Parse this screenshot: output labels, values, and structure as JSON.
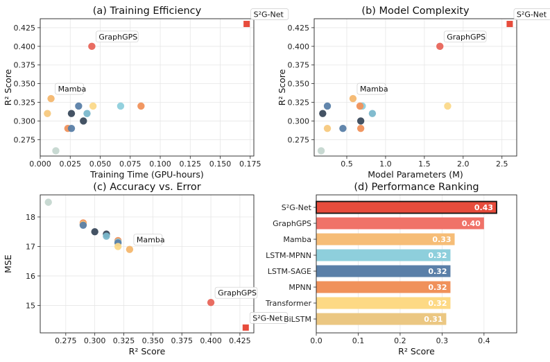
{
  "chart_data": [
    {
      "type": "scatter",
      "title": "(a) Training Efficiency",
      "xlabel": "Training Time (GPU-hours)",
      "ylabel": "R² Score",
      "xlim": [
        0.0,
        0.178
      ],
      "ylim": [
        0.253,
        0.437
      ],
      "xticks": [
        0.0,
        0.025,
        0.05,
        0.075,
        0.1,
        0.125,
        0.15,
        0.175
      ],
      "xtick_labels": [
        "0.000",
        "0.025",
        "0.050",
        "0.075",
        "0.100",
        "0.125",
        "0.150",
        "0.175"
      ],
      "yticks": [
        0.275,
        0.3,
        0.325,
        0.35,
        0.375,
        0.4,
        0.425
      ],
      "ytick_labels": [
        "0.275",
        "0.300",
        "0.325",
        "0.350",
        "0.375",
        "0.400",
        "0.425"
      ],
      "points": [
        {
          "x": 0.172,
          "y": 0.43,
          "color": "#e74c3c",
          "marker": "square",
          "label": "S²G-Net"
        },
        {
          "x": 0.043,
          "y": 0.4,
          "color": "#e8655a",
          "label": "GraphGPS"
        },
        {
          "x": 0.009,
          "y": 0.33,
          "color": "#f4b76e",
          "label": "Mamba"
        },
        {
          "x": 0.006,
          "y": 0.31,
          "color": "#f7c97e"
        },
        {
          "x": 0.026,
          "y": 0.31,
          "color": "#3a4a5c"
        },
        {
          "x": 0.032,
          "y": 0.32,
          "color": "#5a7fa8"
        },
        {
          "x": 0.044,
          "y": 0.32,
          "color": "#fbd98a"
        },
        {
          "x": 0.067,
          "y": 0.32,
          "color": "#8ecfdc"
        },
        {
          "x": 0.084,
          "y": 0.32,
          "color": "#f0915a"
        },
        {
          "x": 0.039,
          "y": 0.31,
          "color": "#7bb8cc"
        },
        {
          "x": 0.036,
          "y": 0.3,
          "color": "#3a4a5c"
        },
        {
          "x": 0.023,
          "y": 0.29,
          "color": "#f0915a"
        },
        {
          "x": 0.026,
          "y": 0.29,
          "color": "#5a7fa8"
        },
        {
          "x": 0.013,
          "y": 0.26,
          "color": "#c5d7d0"
        }
      ]
    },
    {
      "type": "scatter",
      "title": "(b) Model Complexity",
      "xlabel": "Model Parameters (M)",
      "ylabel": "R² Score",
      "xlim": [
        0.08,
        2.69
      ],
      "ylim": [
        0.253,
        0.437
      ],
      "xticks": [
        0.5,
        1.0,
        1.5,
        2.0,
        2.5
      ],
      "xtick_labels": [
        "0.5",
        "1.0",
        "1.5",
        "2.0",
        "2.5"
      ],
      "yticks": [
        0.275,
        0.3,
        0.325,
        0.35,
        0.375,
        0.4,
        0.425
      ],
      "ytick_labels": [
        "0.275",
        "0.300",
        "0.325",
        "0.350",
        "0.375",
        "0.400",
        "0.425"
      ],
      "points": [
        {
          "x": 2.6,
          "y": 0.43,
          "color": "#e74c3c",
          "marker": "square",
          "label": "S²G-Net"
        },
        {
          "x": 1.7,
          "y": 0.4,
          "color": "#e8655a",
          "label": "GraphGPS"
        },
        {
          "x": 0.58,
          "y": 0.33,
          "color": "#f4b76e",
          "label": "Mamba"
        },
        {
          "x": 0.19,
          "y": 0.31,
          "color": "#3a4a5c"
        },
        {
          "x": 0.25,
          "y": 0.32,
          "color": "#5a7fa8"
        },
        {
          "x": 0.7,
          "y": 0.32,
          "color": "#8ecfdc"
        },
        {
          "x": 0.67,
          "y": 0.32,
          "color": "#f0915a"
        },
        {
          "x": 1.8,
          "y": 0.32,
          "color": "#fbd98a"
        },
        {
          "x": 0.83,
          "y": 0.31,
          "color": "#7bb8cc"
        },
        {
          "x": 0.68,
          "y": 0.3,
          "color": "#3a4a5c"
        },
        {
          "x": 0.25,
          "y": 0.29,
          "color": "#f7c97e"
        },
        {
          "x": 0.45,
          "y": 0.29,
          "color": "#5a7fa8"
        },
        {
          "x": 0.68,
          "y": 0.29,
          "color": "#f0915a"
        },
        {
          "x": 0.17,
          "y": 0.26,
          "color": "#c5d7d0"
        }
      ]
    },
    {
      "type": "scatter",
      "title": "(c) Accuracy vs. Error",
      "xlabel": "R² Score",
      "ylabel": "MSE",
      "xlim": [
        0.253,
        0.437
      ],
      "ylim": [
        14.07,
        18.75
      ],
      "xticks": [
        0.275,
        0.3,
        0.325,
        0.35,
        0.375,
        0.4,
        0.425
      ],
      "xtick_labels": [
        "0.275",
        "0.300",
        "0.325",
        "0.350",
        "0.375",
        "0.400",
        "0.425"
      ],
      "yticks": [
        15,
        16,
        17,
        18
      ],
      "ytick_labels": [
        "15",
        "16",
        "17",
        "18"
      ],
      "points": [
        {
          "x": 0.43,
          "y": 14.25,
          "color": "#e74c3c",
          "marker": "square",
          "label": "S²G-Net"
        },
        {
          "x": 0.4,
          "y": 15.1,
          "color": "#e8655a",
          "label": "GraphGPS"
        },
        {
          "x": 0.33,
          "y": 16.9,
          "color": "#f4b76e",
          "label": "Mamba"
        },
        {
          "x": 0.26,
          "y": 18.5,
          "color": "#c5d7d0"
        },
        {
          "x": 0.29,
          "y": 17.8,
          "color": "#f0915a"
        },
        {
          "x": 0.29,
          "y": 17.75,
          "color": "#f7c97e"
        },
        {
          "x": 0.29,
          "y": 17.72,
          "color": "#5a7fa8"
        },
        {
          "x": 0.3,
          "y": 17.5,
          "color": "#3a4a5c"
        },
        {
          "x": 0.31,
          "y": 17.42,
          "color": "#3a4a5c"
        },
        {
          "x": 0.31,
          "y": 17.35,
          "color": "#7bb8cc"
        },
        {
          "x": 0.32,
          "y": 17.2,
          "color": "#f0915a"
        },
        {
          "x": 0.32,
          "y": 17.15,
          "color": "#8ecfdc"
        },
        {
          "x": 0.32,
          "y": 17.12,
          "color": "#5a7fa8"
        },
        {
          "x": 0.32,
          "y": 17.0,
          "color": "#fbd98a"
        }
      ]
    },
    {
      "type": "bar",
      "orientation": "horizontal",
      "title": "(d) Performance Ranking",
      "xlabel": "R² Score",
      "xlim": [
        0.0,
        0.478
      ],
      "xticks": [
        0.0,
        0.1,
        0.2,
        0.3,
        0.4
      ],
      "xtick_labels": [
        "0.0",
        "0.1",
        "0.2",
        "0.3",
        "0.4"
      ],
      "categories": [
        "S²G-Net",
        "GraphGPS",
        "Mamba",
        "LSTM-MPNN",
        "LSTM-SAGE",
        "MPNN",
        "Transformer",
        "BiLSTM"
      ],
      "values": [
        0.43,
        0.4,
        0.33,
        0.32,
        0.32,
        0.32,
        0.32,
        0.31
      ],
      "value_labels": [
        "0.43",
        "0.40",
        "0.33",
        "0.32",
        "0.32",
        "0.32",
        "0.32",
        "0.31"
      ],
      "colors": [
        "#e74c3c",
        "#f07268",
        "#f6bd77",
        "#8ecfdc",
        "#5a7fa8",
        "#f0915a",
        "#fdd984",
        "#ebc782"
      ],
      "highlight": "S²G-Net"
    }
  ]
}
